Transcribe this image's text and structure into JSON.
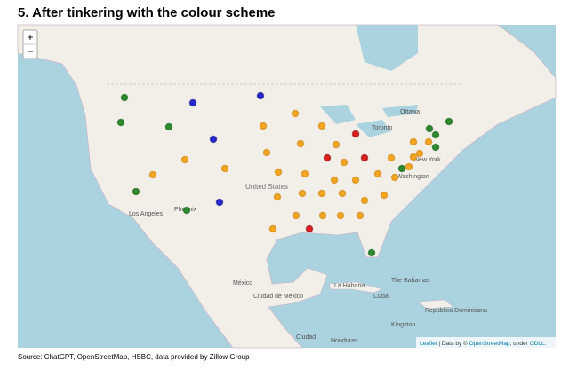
{
  "header": {
    "title": "5. After tinkering with the colour scheme"
  },
  "map": {
    "zoom_in": "+",
    "zoom_out": "−",
    "labels": {
      "ottawa": "Ottawa",
      "toronto": "Toronto",
      "new_york": "New York",
      "washington": "Washington",
      "united_states": "United States",
      "los_angeles": "Los Angeles",
      "phoenix": "Phoenix",
      "mexico": "México",
      "mexico_city": "Ciudad de México",
      "havana": "La Habana",
      "cuba": "Cuba",
      "bahamas": "The Bahamas",
      "dominican": "República Dominicana",
      "kingston": "Kingston",
      "honduras": "Honduras",
      "ciudad": "Ciudad"
    },
    "attribution": {
      "leaflet": "Leaflet",
      "data_by": "| Data by ©",
      "osm": "OpenStreetMap",
      "under": ", under",
      "odbl": "ODbL."
    }
  },
  "footer": {
    "source": "Source: ChatGPT, OpenStreetMap, HSBC, data provided by Zillow Group"
  }
}
